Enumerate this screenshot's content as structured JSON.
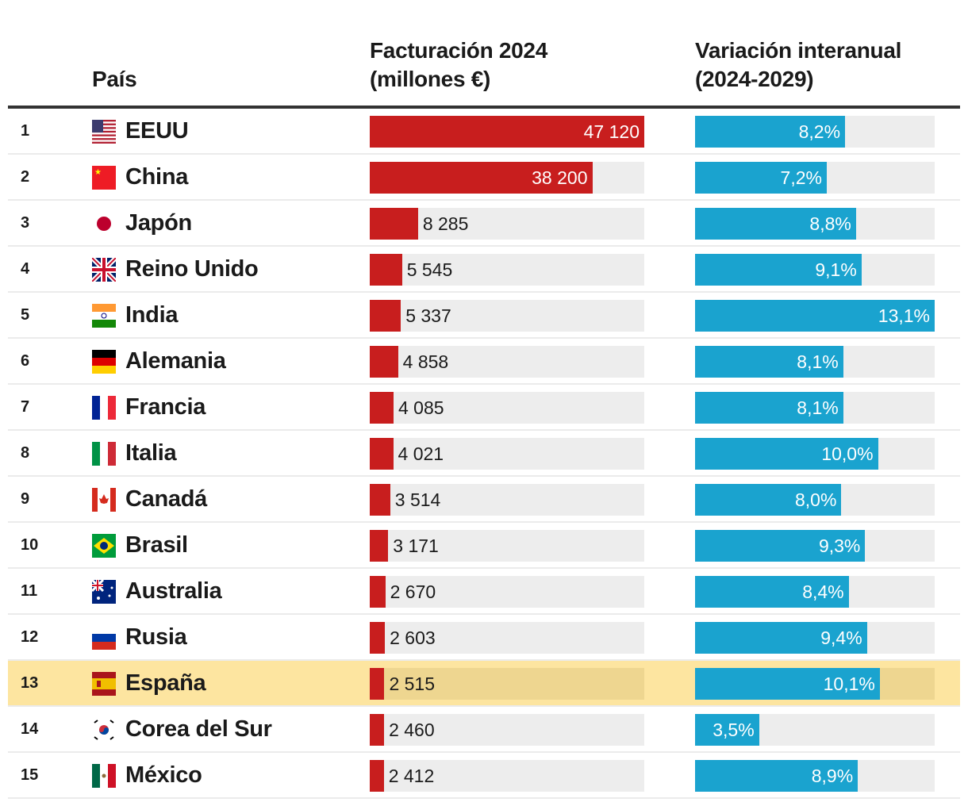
{
  "chart_data": {
    "type": "table",
    "headers": {
      "country": "País",
      "revenue": [
        "Facturación 2024",
        "(millones €)"
      ],
      "growth": [
        "Variación interanual",
        "(2024-2029)"
      ]
    },
    "colors": {
      "revenue": "#c81e1e",
      "growth": "#1aa3cf",
      "highlight": "#fde5a0"
    },
    "highlight": "España",
    "rows": [
      {
        "rank": "1",
        "code": "us",
        "country": "EEUU",
        "revenue": 47120,
        "revenue_label": "47 120",
        "growth": 8.2,
        "growth_label": "8,2%"
      },
      {
        "rank": "2",
        "code": "cn",
        "country": "China",
        "revenue": 38200,
        "revenue_label": "38 200",
        "growth": 7.2,
        "growth_label": "7,2%"
      },
      {
        "rank": "3",
        "code": "jp",
        "country": "Japón",
        "revenue": 8285,
        "revenue_label": "8 285",
        "growth": 8.8,
        "growth_label": "8,8%"
      },
      {
        "rank": "4",
        "code": "gb",
        "country": "Reino Unido",
        "revenue": 5545,
        "revenue_label": "5 545",
        "growth": 9.1,
        "growth_label": "9,1%"
      },
      {
        "rank": "5",
        "code": "in",
        "country": "India",
        "revenue": 5337,
        "revenue_label": "5 337",
        "growth": 13.1,
        "growth_label": "13,1%"
      },
      {
        "rank": "6",
        "code": "de",
        "country": "Alemania",
        "revenue": 4858,
        "revenue_label": "4 858",
        "growth": 8.1,
        "growth_label": "8,1%"
      },
      {
        "rank": "7",
        "code": "fr",
        "country": "Francia",
        "revenue": 4085,
        "revenue_label": "4 085",
        "growth": 8.1,
        "growth_label": "8,1%"
      },
      {
        "rank": "8",
        "code": "it",
        "country": "Italia",
        "revenue": 4021,
        "revenue_label": "4 021",
        "growth": 10.0,
        "growth_label": "10,0%"
      },
      {
        "rank": "9",
        "code": "ca",
        "country": "Canadá",
        "revenue": 3514,
        "revenue_label": "3 514",
        "growth": 8.0,
        "growth_label": "8,0%"
      },
      {
        "rank": "10",
        "code": "br",
        "country": "Brasil",
        "revenue": 3171,
        "revenue_label": "3 171",
        "growth": 9.3,
        "growth_label": "9,3%"
      },
      {
        "rank": "11",
        "code": "au",
        "country": "Australia",
        "revenue": 2670,
        "revenue_label": "2 670",
        "growth": 8.4,
        "growth_label": "8,4%"
      },
      {
        "rank": "12",
        "code": "ru",
        "country": "Rusia",
        "revenue": 2603,
        "revenue_label": "2 603",
        "growth": 9.4,
        "growth_label": "9,4%"
      },
      {
        "rank": "13",
        "code": "es",
        "country": "España",
        "revenue": 2515,
        "revenue_label": "2 515",
        "growth": 10.1,
        "growth_label": "10,1%"
      },
      {
        "rank": "14",
        "code": "kr",
        "country": "Corea del Sur",
        "revenue": 2460,
        "revenue_label": "2 460",
        "growth": 3.5,
        "growth_label": "3,5%"
      },
      {
        "rank": "15",
        "code": "mx",
        "country": "México",
        "revenue": 2412,
        "revenue_label": "2 412",
        "growth": 8.9,
        "growth_label": "8,9%"
      }
    ]
  }
}
